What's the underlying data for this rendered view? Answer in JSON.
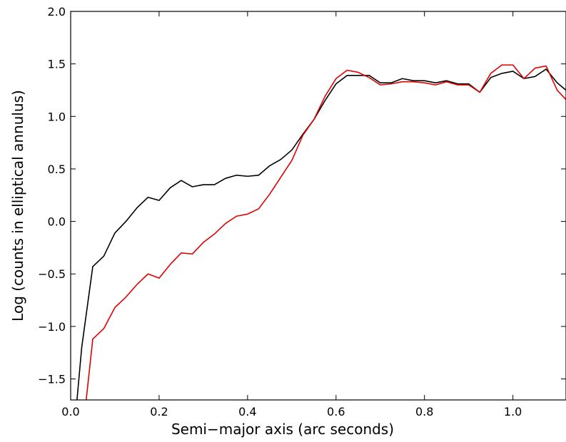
{
  "chart_data": {
    "type": "line",
    "title": "",
    "xlabel": "Semi−major axis (arc seconds)",
    "ylabel": "Log (counts in elliptical annulus)",
    "xlim": [
      0.0,
      1.12
    ],
    "ylim": [
      -1.7,
      2.0
    ],
    "xticks": [
      0.0,
      0.2,
      0.4,
      0.6,
      0.8,
      1.0
    ],
    "xtick_labels": [
      "0.0",
      "0.2",
      "0.4",
      "0.6",
      "0.8",
      "1.0"
    ],
    "yticks": [
      -1.5,
      -1.0,
      -0.5,
      0.0,
      0.5,
      1.0,
      1.5,
      2.0
    ],
    "ytick_labels": [
      "−1.5",
      "−1.0",
      "−0.5",
      "0.0",
      "0.5",
      "1.0",
      "1.5",
      "2.0"
    ],
    "grid": false,
    "legend": "none",
    "series": [
      {
        "color": "#000000",
        "points": [
          [
            0.01,
            -1.9
          ],
          [
            0.025,
            -1.2
          ],
          [
            0.05,
            -0.43
          ],
          [
            0.075,
            -0.33
          ],
          [
            0.1,
            -0.11
          ],
          [
            0.125,
            0.0
          ],
          [
            0.15,
            0.13
          ],
          [
            0.175,
            0.23
          ],
          [
            0.2,
            0.2
          ],
          [
            0.225,
            0.32
          ],
          [
            0.25,
            0.39
          ],
          [
            0.275,
            0.33
          ],
          [
            0.3,
            0.35
          ],
          [
            0.325,
            0.35
          ],
          [
            0.35,
            0.41
          ],
          [
            0.375,
            0.44
          ],
          [
            0.4,
            0.43
          ],
          [
            0.425,
            0.44
          ],
          [
            0.45,
            0.53
          ],
          [
            0.475,
            0.59
          ],
          [
            0.5,
            0.68
          ],
          [
            0.525,
            0.83
          ],
          [
            0.55,
            0.97
          ],
          [
            0.575,
            1.15
          ],
          [
            0.6,
            1.31
          ],
          [
            0.625,
            1.39
          ],
          [
            0.65,
            1.39
          ],
          [
            0.675,
            1.39
          ],
          [
            0.7,
            1.32
          ],
          [
            0.725,
            1.32
          ],
          [
            0.75,
            1.36
          ],
          [
            0.775,
            1.34
          ],
          [
            0.8,
            1.34
          ],
          [
            0.825,
            1.32
          ],
          [
            0.85,
            1.34
          ],
          [
            0.875,
            1.31
          ],
          [
            0.9,
            1.31
          ],
          [
            0.925,
            1.23
          ],
          [
            0.95,
            1.37
          ],
          [
            0.975,
            1.41
          ],
          [
            1.0,
            1.43
          ],
          [
            1.025,
            1.36
          ],
          [
            1.05,
            1.38
          ],
          [
            1.075,
            1.45
          ],
          [
            1.1,
            1.32
          ],
          [
            1.12,
            1.25
          ]
        ]
      },
      {
        "color": "#e00000",
        "points": [
          [
            0.03,
            -1.9
          ],
          [
            0.05,
            -1.12
          ],
          [
            0.075,
            -1.02
          ],
          [
            0.1,
            -0.82
          ],
          [
            0.125,
            -0.72
          ],
          [
            0.15,
            -0.6
          ],
          [
            0.175,
            -0.5
          ],
          [
            0.2,
            -0.54
          ],
          [
            0.225,
            -0.41
          ],
          [
            0.25,
            -0.3
          ],
          [
            0.275,
            -0.31
          ],
          [
            0.3,
            -0.2
          ],
          [
            0.325,
            -0.12
          ],
          [
            0.35,
            -0.02
          ],
          [
            0.375,
            0.05
          ],
          [
            0.4,
            0.07
          ],
          [
            0.425,
            0.12
          ],
          [
            0.45,
            0.26
          ],
          [
            0.475,
            0.42
          ],
          [
            0.5,
            0.58
          ],
          [
            0.525,
            0.82
          ],
          [
            0.55,
            0.97
          ],
          [
            0.575,
            1.19
          ],
          [
            0.6,
            1.36
          ],
          [
            0.625,
            1.44
          ],
          [
            0.65,
            1.42
          ],
          [
            0.675,
            1.37
          ],
          [
            0.7,
            1.3
          ],
          [
            0.725,
            1.31
          ],
          [
            0.75,
            1.33
          ],
          [
            0.775,
            1.33
          ],
          [
            0.8,
            1.32
          ],
          [
            0.825,
            1.3
          ],
          [
            0.85,
            1.33
          ],
          [
            0.875,
            1.3
          ],
          [
            0.9,
            1.3
          ],
          [
            0.925,
            1.23
          ],
          [
            0.95,
            1.41
          ],
          [
            0.975,
            1.49
          ],
          [
            1.0,
            1.49
          ],
          [
            1.025,
            1.36
          ],
          [
            1.05,
            1.46
          ],
          [
            1.075,
            1.48
          ],
          [
            1.1,
            1.25
          ],
          [
            1.12,
            1.16
          ]
        ]
      }
    ]
  }
}
